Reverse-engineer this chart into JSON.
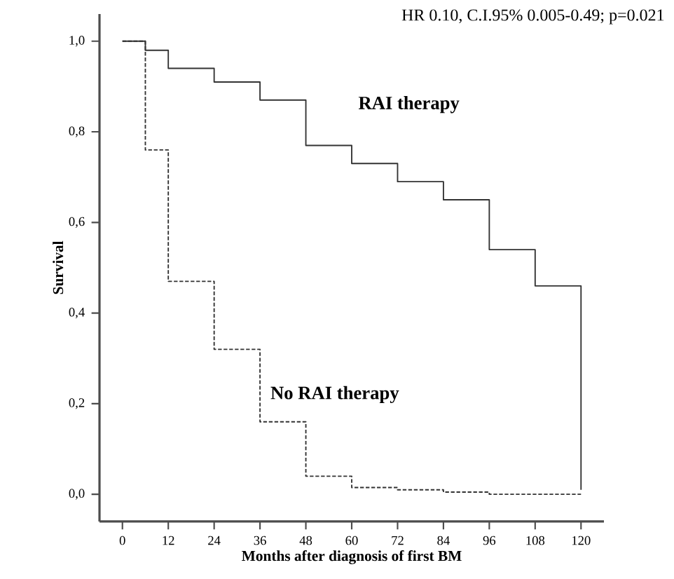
{
  "chart_data": {
    "type": "step",
    "xlabel": "Months after diagnosis of first BM",
    "ylabel": "Survival",
    "annotations": [
      "HR 0.10, C.I.95% 0.005-0.49; p=0.021"
    ],
    "x": [
      0,
      6,
      12,
      24,
      36,
      48,
      60,
      72,
      84,
      96,
      108,
      120
    ],
    "series": [
      {
        "name": "RAI therapy",
        "color": "#333333",
        "line_style": "solid",
        "values": [
          1.0,
          0.98,
          0.94,
          0.91,
          0.87,
          0.77,
          0.73,
          0.69,
          0.65,
          0.54,
          0.46,
          0.01
        ]
      },
      {
        "name": "No RAI therapy",
        "color": "#333333",
        "line_style": "dashed",
        "values": [
          1.0,
          0.76,
          0.47,
          0.32,
          0.16,
          0.04,
          0.015,
          0.01,
          0.005,
          0.0,
          0.0,
          0.0
        ]
      }
    ],
    "xlim": [
      -6,
      126
    ],
    "ylim": [
      -0.06,
      1.06
    ],
    "xticks": [
      0,
      12,
      24,
      36,
      48,
      60,
      72,
      84,
      96,
      108,
      120
    ],
    "yticks": [
      {
        "value": 0,
        "label": "0,0"
      },
      {
        "value": 0.2,
        "label": "0,2"
      },
      {
        "value": 0.4,
        "label": "0,4"
      },
      {
        "value": 0.6,
        "label": "0,6"
      },
      {
        "value": 0.8,
        "label": "0,8"
      },
      {
        "value": 1,
        "label": "1,0"
      }
    ],
    "grid": false,
    "legend": false
  }
}
